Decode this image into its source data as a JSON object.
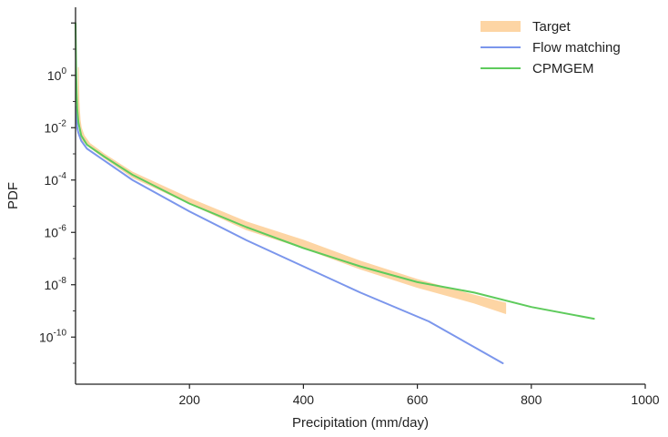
{
  "chart_data": {
    "type": "line",
    "title": "",
    "xlabel": "Precipitation (mm/day)",
    "ylabel": "PDF",
    "xlim": [
      0,
      1000
    ],
    "ylim_log10": [
      -11.8,
      2.6
    ],
    "y_scale": "log",
    "grid": false,
    "legend_position": "top-right",
    "x_ticks": [
      200,
      400,
      600,
      800,
      1000
    ],
    "y_ticks": [
      {
        "exp": 0,
        "base": "10",
        "power": "0"
      },
      {
        "exp": -2,
        "base": "10",
        "power": "-2"
      },
      {
        "exp": -4,
        "base": "10",
        "power": "-4"
      },
      {
        "exp": -6,
        "base": "10",
        "power": "-6"
      },
      {
        "exp": -8,
        "base": "10",
        "power": "-8"
      },
      {
        "exp": -10,
        "base": "10",
        "power": "-10"
      }
    ],
    "series": [
      {
        "name": "Target",
        "color": "#fdd5a4",
        "style": "band",
        "x": [
          5,
          6,
          8,
          10,
          15,
          25,
          50,
          100,
          200,
          300,
          400,
          500,
          600,
          700,
          755
        ],
        "upper_log10": [
          0.3,
          -1.0,
          -1.7,
          -2.0,
          -2.3,
          -2.6,
          -3.0,
          -3.7,
          -4.7,
          -5.6,
          -6.3,
          -7.1,
          -7.8,
          -8.4,
          -8.7
        ],
        "lower_log10": [
          -1.4,
          -1.9,
          -2.2,
          -2.4,
          -2.55,
          -2.75,
          -3.15,
          -3.9,
          -4.9,
          -5.9,
          -6.6,
          -7.4,
          -8.1,
          -8.7,
          -9.1
        ]
      },
      {
        "name": "Flow matching",
        "color": "#7b96ec",
        "style": "line",
        "x": [
          1,
          2,
          3,
          5,
          10,
          20,
          50,
          100,
          200,
          300,
          400,
          500,
          620,
          750
        ],
        "y_log10": [
          -1.2,
          -1.7,
          -2.0,
          -2.2,
          -2.5,
          -2.8,
          -3.25,
          -4.0,
          -5.2,
          -6.3,
          -7.3,
          -8.3,
          -9.4,
          -11.0
        ]
      },
      {
        "name": "CPMGEM",
        "color": "#5ecb5c",
        "style": "line",
        "x": [
          0,
          1,
          2,
          3,
          5,
          10,
          20,
          50,
          100,
          200,
          300,
          400,
          500,
          600,
          700,
          800,
          910
        ],
        "y_log10": [
          2.0,
          0.3,
          -0.7,
          -1.3,
          -1.8,
          -2.3,
          -2.65,
          -3.1,
          -3.8,
          -4.9,
          -5.8,
          -6.6,
          -7.3,
          -7.9,
          -8.3,
          -8.85,
          -9.3
        ]
      }
    ]
  }
}
